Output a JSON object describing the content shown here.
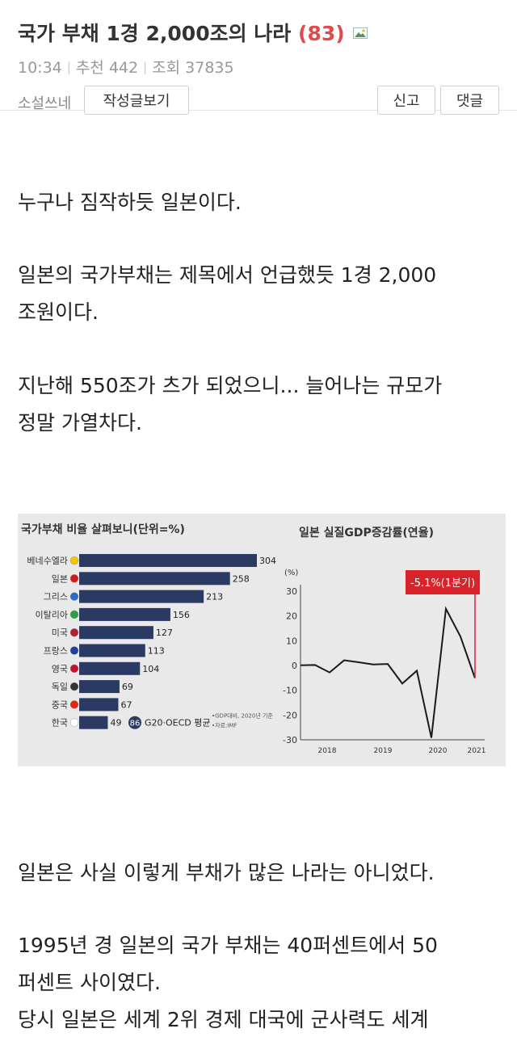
{
  "post": {
    "title": "국가 부채 1경 2,000조의 나라",
    "comment_count": "(83)",
    "time": "10:34",
    "recommend": "추천 442",
    "views": "조회 37835",
    "author": "소설쓰네",
    "view_posts_label": "작성글보기",
    "report_label": "신고",
    "comment_label": "댓글"
  },
  "body": {
    "p1": "누구나 짐작하듯 일본이다.",
    "p2_line1": "일본의 국가부채는 제목에서 언급했듯 1경 2,000",
    "p2_line2": "조원이다.",
    "p3_line1": "지난해 550조가 츠가 되었으니... 늘어나는 규모가",
    "p3_line2": "정말 가열차다.",
    "p4": "일본은 사실 이렇게 부채가 많은 나라는 아니었다.",
    "p5_line1": "1995년 경 일본의 국가 부채는 40퍼센트에서 50",
    "p5_line2": "퍼센트 사이였다.",
    "p6_line1": "당시 일본은 세계 2위 경제 대국에 군사력도 세계"
  },
  "chart_data": [
    {
      "type": "bar",
      "title": "국가부채 비율 살펴보니(단위=%)",
      "categories": [
        "베네수엘라",
        "일본",
        "그리스",
        "이탈리아",
        "미국",
        "프랑스",
        "영국",
        "독일",
        "중국",
        "한국"
      ],
      "values": [
        304,
        258,
        213,
        156,
        127,
        113,
        104,
        69,
        67,
        49
      ],
      "reference": {
        "value": 86,
        "label": "G20·OECD 평균"
      },
      "notes": [
        "•GDP대비, 2020년 기준",
        "•자료:IMF"
      ],
      "bar_color": "#2b3a63",
      "xlim": [
        0,
        304
      ]
    },
    {
      "type": "line",
      "title": "일본 실질GDP증감률(연율)",
      "ylabel": "(%)",
      "ylim": [
        -30,
        30
      ],
      "yticks": [
        30,
        20,
        10,
        0,
        -10,
        -20,
        -30
      ],
      "xticks": [
        "2018",
        "2019",
        "2020",
        "2021"
      ],
      "x": [
        0,
        1,
        2,
        3,
        4,
        5,
        6,
        7,
        8,
        9,
        10,
        11,
        12
      ],
      "values": [
        0.1,
        0.2,
        -2.8,
        2.1,
        1.3,
        0.4,
        0.6,
        -7.3,
        -2.1,
        -29.2,
        22.9,
        11.7,
        -5.1
      ],
      "annotation": "-5.1%(1분기)",
      "line_color": "#1a1a1a",
      "annotation_color": "#d8232a"
    }
  ]
}
